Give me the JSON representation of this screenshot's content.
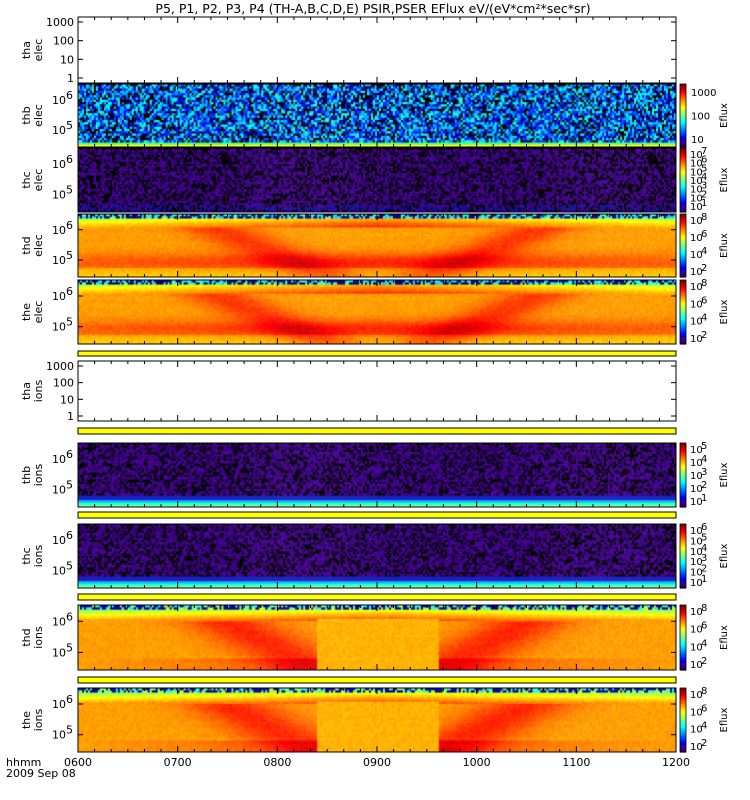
{
  "title": "P5, P1, P2, P3, P4 (TH-A,B,C,D,E) PSIR,PSER EFlux eV/(eV*cm²*sec*sr)",
  "x_axis": {
    "ticks": [
      "0600",
      "0700",
      "0800",
      "0900",
      "1000",
      "1100",
      "1200"
    ],
    "unit_label": "hhmm",
    "date_label": "2009 Sep 08"
  },
  "colors": {
    "yellow_strip": "#ffff00",
    "frame": "#000000"
  },
  "chart_data": [
    {
      "type": "heatmap",
      "name": "tha elec",
      "label_line1": "tha",
      "label_line2": "elec",
      "pattern": "empty",
      "yticks": [
        "1000",
        "100",
        "10",
        "1"
      ],
      "colorbar": null
    },
    {
      "type": "heatmap",
      "name": "thb elec",
      "label_line1": "thb",
      "label_line2": "elec",
      "pattern": "noise_blue",
      "yticks_base": "10",
      "yticks_exp": [
        "6",
        "5"
      ],
      "colorbar": {
        "label": "Eflux",
        "ticks": [
          "1000",
          "100",
          "10"
        ],
        "exps": null
      }
    },
    {
      "type": "heatmap",
      "name": "thc elec",
      "label_line1": "thc",
      "label_line2": "elec",
      "pattern": "noise_purple",
      "yticks_base": "10",
      "yticks_exp": [
        "6",
        "5"
      ],
      "colorbar": {
        "label": "Eflux",
        "ticks": [],
        "base": "10",
        "exps": [
          "7",
          "6",
          "5",
          "4",
          "3",
          "2",
          "1"
        ]
      }
    },
    {
      "type": "heatmap",
      "name": "thd elec",
      "label_line1": "thd",
      "label_line2": "elec",
      "pattern": "plasma_elec",
      "yticks_base": "10",
      "yticks_exp": [
        "6",
        "5"
      ],
      "colorbar": {
        "label": "Eflux",
        "ticks": [],
        "base": "10",
        "exps": [
          "8",
          "6",
          "4",
          "2"
        ]
      }
    },
    {
      "type": "heatmap",
      "name": "the elec",
      "label_line1": "the",
      "label_line2": "elec",
      "pattern": "plasma_elec",
      "yticks_base": "10",
      "yticks_exp": [
        "6",
        "5"
      ],
      "colorbar": {
        "label": "Eflux",
        "ticks": [],
        "base": "10",
        "exps": [
          "8",
          "6",
          "4",
          "2"
        ]
      }
    },
    {
      "type": "heatmap",
      "name": "tha ions",
      "label_line1": "tha",
      "label_line2": "ions",
      "pattern": "empty",
      "yticks": [
        "1000",
        "100",
        "10",
        "1"
      ],
      "colorbar": null
    },
    {
      "type": "heatmap",
      "name": "thb ions",
      "label_line1": "thb",
      "label_line2": "ions",
      "pattern": "noise_ion",
      "yticks_base": "10",
      "yticks_exp": [
        "6",
        "5"
      ],
      "colorbar": {
        "label": "Eflux",
        "ticks": [],
        "base": "10",
        "exps": [
          "5",
          "4",
          "3",
          "2",
          "1"
        ]
      }
    },
    {
      "type": "heatmap",
      "name": "thc ions",
      "label_line1": "thc",
      "label_line2": "ions",
      "pattern": "noise_ion",
      "yticks_base": "10",
      "yticks_exp": [
        "6",
        "5"
      ],
      "colorbar": {
        "label": "Eflux",
        "ticks": [],
        "base": "10",
        "exps": [
          "6",
          "5",
          "4",
          "3",
          "2",
          "1"
        ]
      }
    },
    {
      "type": "heatmap",
      "name": "thd ions",
      "label_line1": "thd",
      "label_line2": "ions",
      "pattern": "plasma_ion",
      "yticks_base": "10",
      "yticks_exp": [
        "6",
        "5"
      ],
      "colorbar": {
        "label": "Eflux",
        "ticks": [],
        "base": "10",
        "exps": [
          "8",
          "6",
          "4",
          "2"
        ]
      }
    },
    {
      "type": "heatmap",
      "name": "the ions",
      "label_line1": "the",
      "label_line2": "ions",
      "pattern": "plasma_ion",
      "yticks_base": "10",
      "yticks_exp": [
        "6",
        "5"
      ],
      "colorbar": {
        "label": "Eflux",
        "ticks": [],
        "base": "10",
        "exps": [
          "8",
          "6",
          "4",
          "2"
        ]
      }
    }
  ]
}
